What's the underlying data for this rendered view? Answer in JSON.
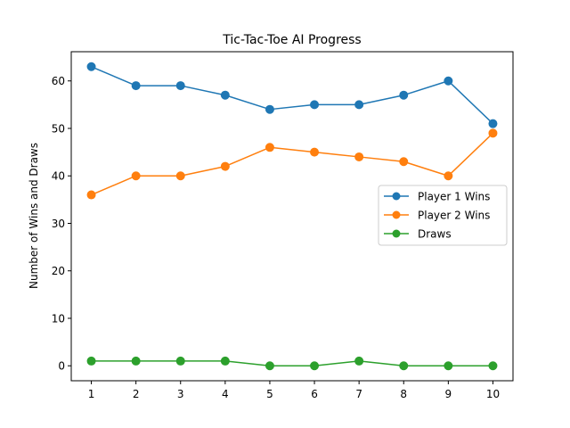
{
  "chart_data": {
    "type": "line",
    "title": "Tic-Tac-Toe AI Progress",
    "xlabel": "",
    "ylabel": "Number of Wins and Draws",
    "x": [
      1,
      2,
      3,
      4,
      5,
      6,
      7,
      8,
      9,
      10
    ],
    "xlim": [
      0.55,
      10.45
    ],
    "ylim": [
      -3.15,
      66.15
    ],
    "xticks": [
      1,
      2,
      3,
      4,
      5,
      6,
      7,
      8,
      9,
      10
    ],
    "yticks": [
      0,
      10,
      20,
      30,
      40,
      50,
      60
    ],
    "grid": false,
    "legend_position": "center-right",
    "series": [
      {
        "name": "Player 1 Wins",
        "color": "#1f77b4",
        "marker": "circle",
        "values": [
          63,
          59,
          59,
          57,
          54,
          55,
          55,
          57,
          60,
          51
        ]
      },
      {
        "name": "Player 2 Wins",
        "color": "#ff7f0e",
        "marker": "circle",
        "values": [
          36,
          40,
          40,
          42,
          46,
          45,
          44,
          43,
          40,
          49
        ]
      },
      {
        "name": "Draws",
        "color": "#2ca02c",
        "marker": "circle",
        "values": [
          1,
          1,
          1,
          1,
          0,
          0,
          1,
          0,
          0,
          0
        ]
      }
    ]
  }
}
